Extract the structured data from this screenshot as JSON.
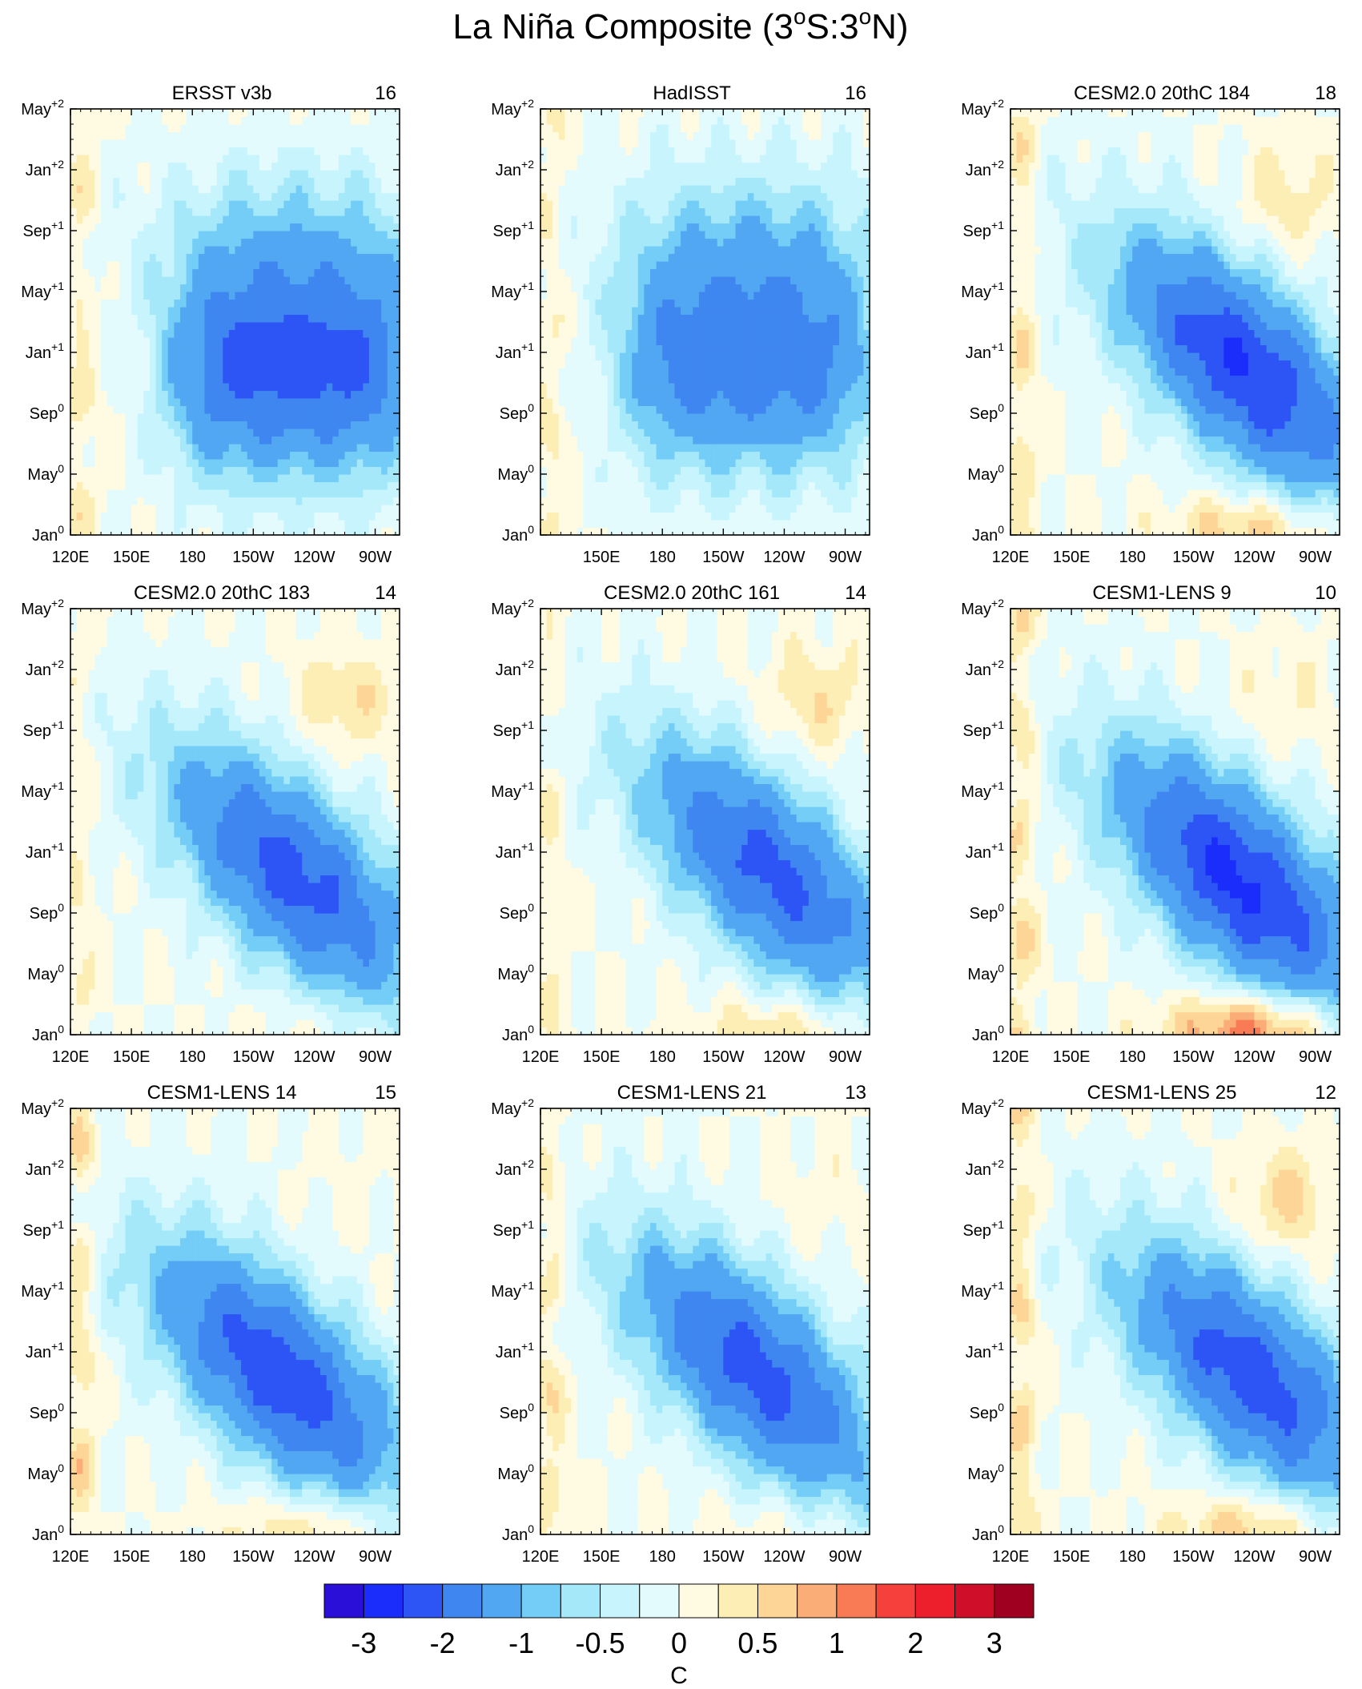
{
  "figure": {
    "title": "La Niña Composite (3°S:3°N)",
    "title_parts": {
      "main": "La Niña Composite (3",
      "deg1": "o",
      "mid": "S:3",
      "deg2": "o",
      "end": "N)"
    }
  },
  "chart_data": {
    "type": "heatmap",
    "description_note": "Hovmoller (longitude vs time) SST anomaly composites, 3x3 panels",
    "x_axis": {
      "tick_labels": [
        "120E",
        "150E",
        "180",
        "150W",
        "120W",
        "90W"
      ],
      "tick_values_deg_east": [
        120,
        150,
        180,
        210,
        240,
        270
      ],
      "range_deg_east": [
        120,
        282
      ]
    },
    "y_axis": {
      "tick_labels": [
        {
          "base": "Jan",
          "sup": "0"
        },
        {
          "base": "May",
          "sup": "0"
        },
        {
          "base": "Sep",
          "sup": "0"
        },
        {
          "base": "Jan",
          "sup": "+1"
        },
        {
          "base": "May",
          "sup": "+1"
        },
        {
          "base": "Sep",
          "sup": "+1"
        },
        {
          "base": "Jan",
          "sup": "+2"
        },
        {
          "base": "May",
          "sup": "+2"
        }
      ],
      "tick_values_month": [
        0,
        4,
        8,
        12,
        16,
        20,
        24,
        28
      ],
      "range_month": [
        0,
        28
      ]
    },
    "colorbar": {
      "label": "C",
      "levels": [
        "-3",
        "-2",
        "-1",
        "-0.5",
        "0",
        "0.5",
        "1",
        "2",
        "3"
      ],
      "colors": [
        "#2a0fd9",
        "#1a2dfa",
        "#2d55f5",
        "#3f86f0",
        "#52a7f3",
        "#73cdf6",
        "#a5e8fa",
        "#c8f5fd",
        "#e3fbfd",
        "#fffbe3",
        "#fdeeb5",
        "#fdd596",
        "#fbad78",
        "#f97b55",
        "#f5403c",
        "#ee1f2d",
        "#cf0f29",
        "#9f0020"
      ]
    },
    "panels": [
      {
        "name": "ERSST v3b",
        "count": "16",
        "show_x_labels": true,
        "first_x_label": true,
        "pattern": {
          "type": "ninaflat",
          "center_lon": 230,
          "center_t": 10.8,
          "min": -2.1,
          "west_pos": 0.4,
          "decay": 12
        }
      },
      {
        "name": "HadISST",
        "count": "16",
        "show_x_labels": true,
        "first_x_label": false,
        "pattern": {
          "type": "ninaflat",
          "center_lon": 222,
          "center_t": 11.2,
          "min": -1.75,
          "west_pos": 0.35,
          "decay": 14
        }
      },
      {
        "name": "CESM2.0 20thC 184",
        "count": "18",
        "show_x_labels": true,
        "first_x_label": true,
        "pattern": {
          "type": "ninaslant",
          "center_lon": 235,
          "center_t": 11,
          "min": -2.5,
          "west_pos": 0.5,
          "early_pos": 0.8,
          "late_pos": 0.5
        }
      },
      {
        "name": "CESM2.0 20thC 183",
        "count": "14",
        "show_x_labels": true,
        "first_x_label": true,
        "pattern": {
          "type": "ninaslant",
          "center_lon": 230,
          "center_t": 10.5,
          "min": -2.2,
          "west_pos": 0.3,
          "early_pos": 0.2,
          "late_pos": 0.6
        }
      },
      {
        "name": "CESM2.0 20thC 161",
        "count": "14",
        "show_x_labels": true,
        "first_x_label": true,
        "pattern": {
          "type": "ninaslant",
          "center_lon": 232,
          "center_t": 10.8,
          "min": -2.15,
          "west_pos": 0.3,
          "early_pos": 0.6,
          "late_pos": 0.6
        }
      },
      {
        "name": "CESM1-LENS 9",
        "count": "10",
        "show_x_labels": true,
        "first_x_label": true,
        "pattern": {
          "type": "ninaslant",
          "center_lon": 232,
          "center_t": 10.2,
          "min": -2.6,
          "west_pos": 0.6,
          "early_pos": 1.4,
          "late_pos": 0.3
        }
      },
      {
        "name": "CESM1-LENS 14",
        "count": "15",
        "show_x_labels": true,
        "first_x_label": true,
        "pattern": {
          "type": "ninaslant",
          "center_lon": 222,
          "center_t": 10.6,
          "min": -2.35,
          "west_pos": 0.6,
          "early_pos": 0.7,
          "late_pos": 0.1
        }
      },
      {
        "name": "CESM1-LENS 21",
        "count": "13",
        "show_x_labels": true,
        "first_x_label": true,
        "pattern": {
          "type": "ninaslant",
          "center_lon": 225,
          "center_t": 10.8,
          "min": -2.2,
          "west_pos": 0.5,
          "early_pos": 0.3,
          "late_pos": 0.2
        }
      },
      {
        "name": "CESM1-LENS 25",
        "count": "12",
        "show_x_labels": true,
        "first_x_label": true,
        "pattern": {
          "type": "ninaslant",
          "center_lon": 238,
          "center_t": 10.5,
          "min": -2.3,
          "west_pos": 0.6,
          "early_pos": 0.8,
          "late_pos": 0.7
        }
      }
    ]
  }
}
